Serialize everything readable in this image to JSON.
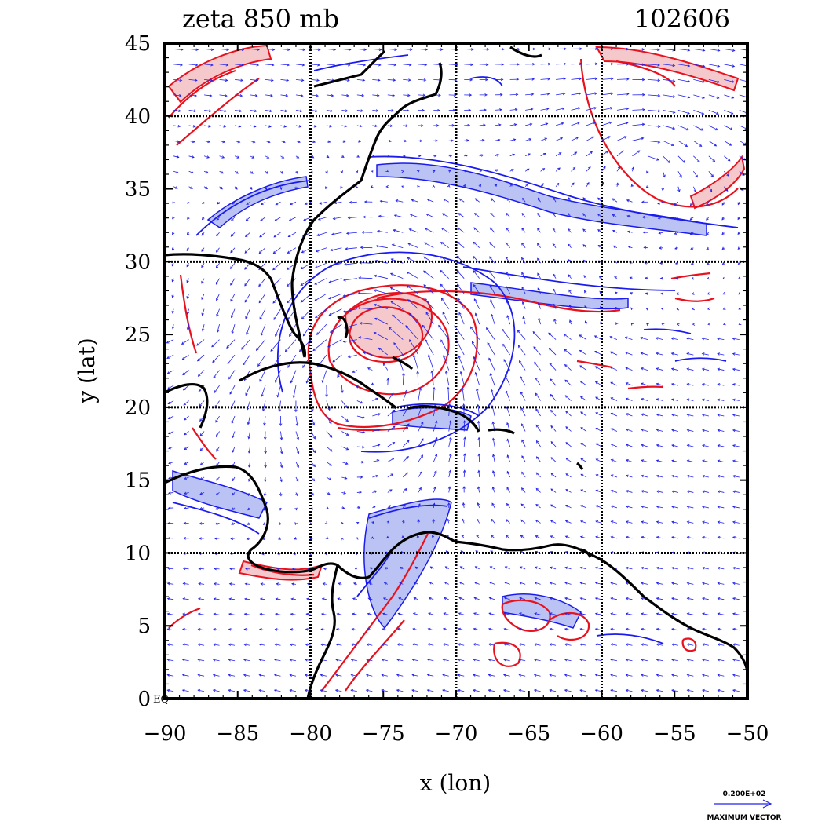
{
  "chart_data": {
    "type": "contour",
    "title": "zeta 850 mb",
    "date_label": "102606",
    "xlabel": "x (lon)",
    "ylabel": "y (lat)",
    "xlim": [
      -90,
      -50
    ],
    "ylim": [
      0,
      45
    ],
    "x_ticks": [
      -90,
      -85,
      -80,
      -75,
      -70,
      -65,
      -60,
      -55,
      -50
    ],
    "x_tick_labels": [
      "−90",
      "−85",
      "−80",
      "−75",
      "−70",
      "−65",
      "−60",
      "−55",
      "−50"
    ],
    "y_ticks": [
      0,
      5,
      10,
      15,
      20,
      25,
      30,
      35,
      40,
      45
    ],
    "y_tick_labels": [
      "0",
      "5",
      "10",
      "15",
      "20",
      "25",
      "30",
      "35",
      "40",
      "45"
    ],
    "equator_label": "EQ",
    "grid_lon": [
      -80,
      -70,
      -60
    ],
    "grid_lat": [
      10,
      20,
      30,
      40
    ],
    "grid": true,
    "vector_legend": {
      "value_label": "0.200E+02",
      "caption": "MAXIMUM VECTOR"
    },
    "cyclone_center": {
      "lon": -76,
      "lat": 23
    },
    "colors": {
      "positive_vorticity": "#e8111d",
      "negative_vorticity": "#1b1bf0",
      "positive_fill": "#f4c3c7",
      "negative_fill": "#a9b4f0",
      "vectors": "#2222ee",
      "coast": "#000000"
    }
  }
}
